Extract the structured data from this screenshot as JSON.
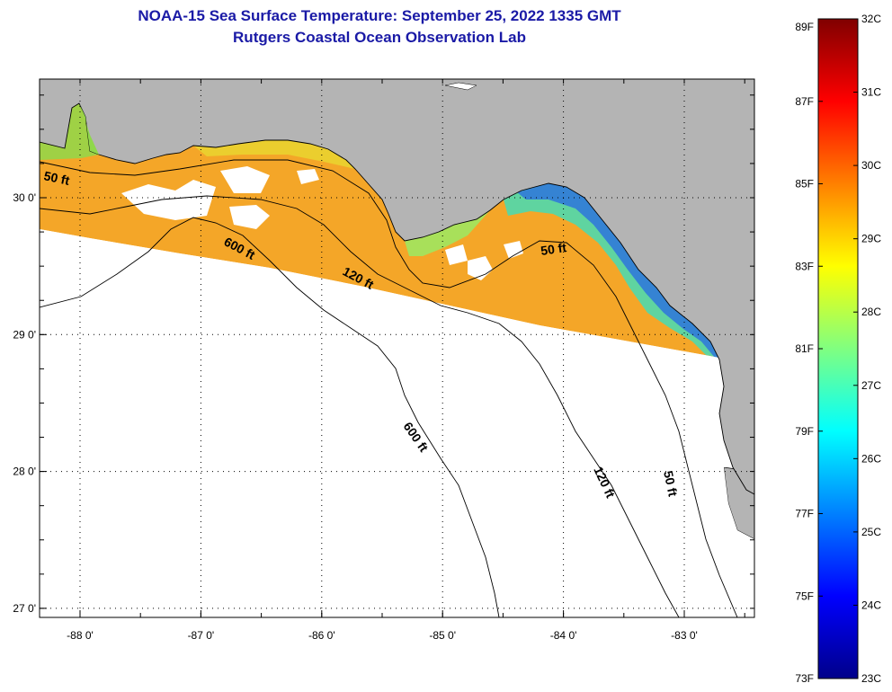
{
  "header": {
    "title": "NOAA-15 Sea Surface Temperature:  September 25, 2022 1335 GMT",
    "subtitle": "Rutgers Coastal Ocean Observation Lab"
  },
  "map": {
    "x_ticks": [
      {
        "lon": -88,
        "label": "-88 0'"
      },
      {
        "lon": -87,
        "label": "-87 0'"
      },
      {
        "lon": -86,
        "label": "-86 0'"
      },
      {
        "lon": -85,
        "label": "-85 0'"
      },
      {
        "lon": -84,
        "label": "-84 0'"
      },
      {
        "lon": -83,
        "label": "-83 0'"
      }
    ],
    "y_ticks": [
      {
        "lat": 30,
        "label": "30 0'"
      },
      {
        "lat": 29,
        "label": "29 0'"
      },
      {
        "lat": 28,
        "label": "28 0'"
      },
      {
        "lat": 27,
        "label": "27 0'"
      }
    ],
    "contour_labels": [
      "50 ft",
      "600 ft",
      "120 ft",
      "50 ft",
      "600 ft",
      "120 ft",
      "50 ft"
    ],
    "colors": {
      "land": "#b4b4b4",
      "ocean": "#ffffff",
      "coast": "#000000"
    }
  },
  "colorbar": {
    "fahrenheit": [
      "89F",
      "87F",
      "85F",
      "83F",
      "81F",
      "79F",
      "77F",
      "75F",
      "73F"
    ],
    "celsius": [
      "32C",
      "31C",
      "30C",
      "29C",
      "28C",
      "27C",
      "26C",
      "25C",
      "24C",
      "23C"
    ],
    "stops": [
      "#00008a",
      "#0000ff",
      "#0080ff",
      "#00ffff",
      "#80ff80",
      "#ffff00",
      "#ff8000",
      "#ff0000",
      "#800000"
    ]
  }
}
